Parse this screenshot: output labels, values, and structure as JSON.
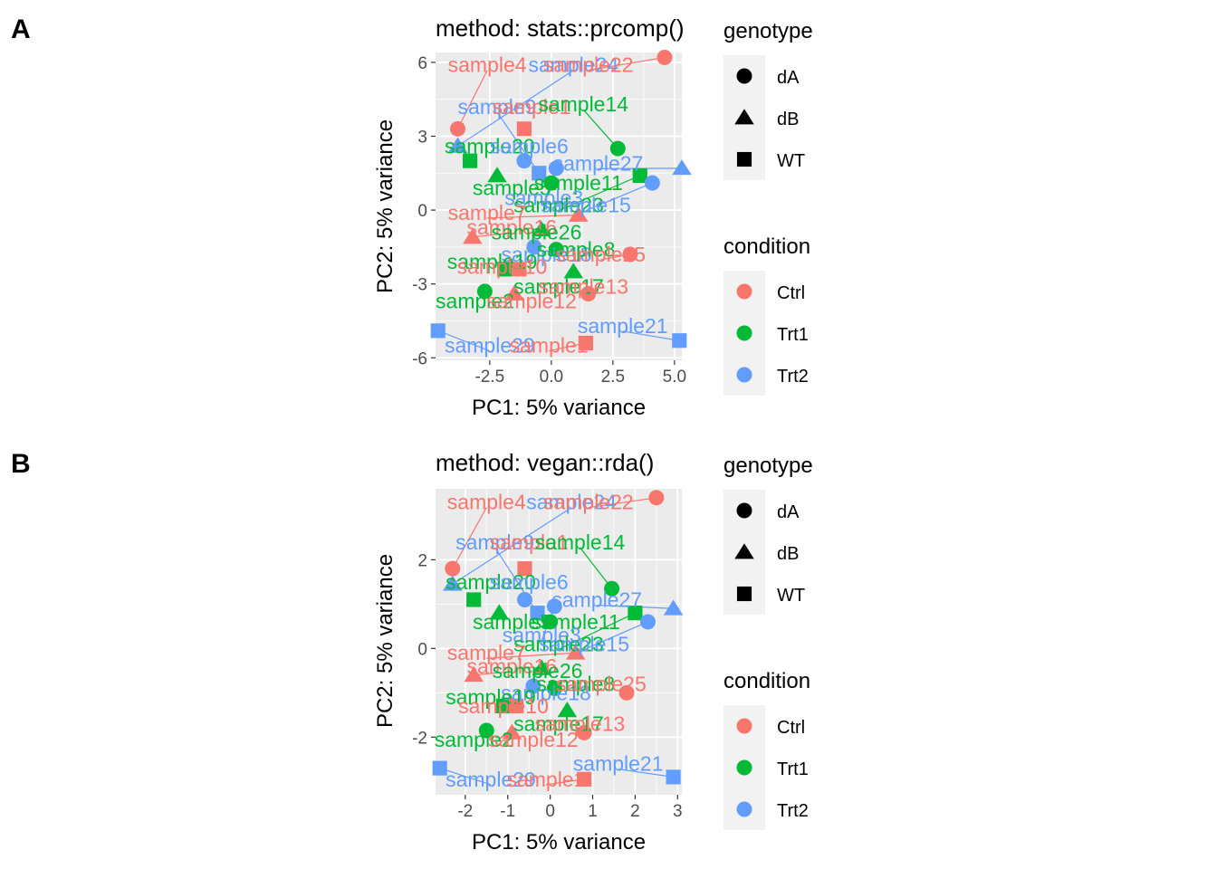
{
  "colors": {
    "panel_bg": "#EBEBEB",
    "grid": "#FFFFFF",
    "legend_key_bg": "#F2F2F2",
    "axis_text": "#4D4D4D",
    "Ctrl": "#F8766D",
    "Trt1": "#00BA38",
    "Trt2": "#619CFF"
  },
  "legend": {
    "genotype_title": "genotype",
    "genotype_items": [
      {
        "label": "dA",
        "shape": "circle"
      },
      {
        "label": "dB",
        "shape": "triangle"
      },
      {
        "label": "WT",
        "shape": "square"
      }
    ],
    "condition_title": "condition",
    "condition_items": [
      {
        "label": "Ctrl",
        "color": "#F8766D"
      },
      {
        "label": "Trt1",
        "color": "#00BA38"
      },
      {
        "label": "Trt2",
        "color": "#619CFF"
      }
    ]
  },
  "chart_data": [
    {
      "panel_tag": "A",
      "type": "scatter",
      "title": "method: stats::prcomp()",
      "xlabel": "PC1: 5% variance",
      "ylabel": "PC2: 5% variance",
      "xlim": [
        -4.7,
        5.3
      ],
      "ylim": [
        -6.1,
        6.4
      ],
      "xticks": [
        -2.5,
        0.0,
        2.5,
        5.0
      ],
      "xtick_labels": [
        "-2.5",
        "0.0",
        "2.5",
        "5.0"
      ],
      "yticks": [
        -6,
        -3,
        0,
        3,
        6
      ],
      "ytick_labels": [
        "-6",
        "-3",
        "0",
        "3",
        "6"
      ],
      "grid": true,
      "legend_position": "right",
      "points": [
        {
          "label": "sample4",
          "condition": "Ctrl",
          "genotype": "dA",
          "x": -3.8,
          "y": 3.3,
          "lx": -2.6,
          "ly": 5.9
        },
        {
          "label": "sample24",
          "condition": "Trt2",
          "genotype": "dB",
          "x": -3.8,
          "y": 2.6,
          "lx": 0.9,
          "ly": 5.9
        },
        {
          "label": "sample22",
          "condition": "Ctrl",
          "genotype": "dA",
          "x": 4.6,
          "y": 6.2,
          "lx": 1.5,
          "ly": 5.9
        },
        {
          "label": "sample9",
          "condition": "Trt2",
          "genotype": "WT",
          "x": -0.5,
          "y": 1.5,
          "lx": -2.2,
          "ly": 4.2
        },
        {
          "label": "sample1",
          "condition": "Ctrl",
          "genotype": "WT",
          "x": -1.1,
          "y": 3.3,
          "lx": -0.8,
          "ly": 4.2
        },
        {
          "label": "sample14",
          "condition": "Trt1",
          "genotype": "dA",
          "x": 2.7,
          "y": 2.5,
          "lx": 1.3,
          "ly": 4.3
        },
        {
          "label": "sample20",
          "condition": "Trt1",
          "genotype": "WT",
          "x": -3.3,
          "y": 2.0,
          "lx": -2.5,
          "ly": 2.6
        },
        {
          "label": "sample6",
          "condition": "Trt2",
          "genotype": "dA",
          "x": -1.1,
          "y": 2.0,
          "lx": -0.9,
          "ly": 2.6
        },
        {
          "label": "sample27",
          "condition": "Trt2",
          "genotype": "dB",
          "x": 5.3,
          "y": 1.7,
          "lx": 1.9,
          "ly": 1.9
        },
        {
          "label": "sample5",
          "condition": "Trt1",
          "genotype": "dB",
          "x": -2.2,
          "y": 1.4,
          "lx": -1.6,
          "ly": 0.9
        },
        {
          "label": "sample11",
          "condition": "Trt1",
          "genotype": "dA",
          "x": 0.0,
          "y": 1.1,
          "lx": 1.1,
          "ly": 1.1
        },
        {
          "label": "sample3",
          "condition": "Trt2",
          "genotype": "dA",
          "x": 0.2,
          "y": 1.7,
          "lx": -0.3,
          "ly": 0.5
        },
        {
          "label": "sample23",
          "condition": "Trt1",
          "genotype": "WT",
          "x": 3.6,
          "y": 1.4,
          "lx": 0.3,
          "ly": 0.2
        },
        {
          "label": "sample15",
          "condition": "Trt2",
          "genotype": "dA",
          "x": 4.1,
          "y": 1.1,
          "lx": 1.4,
          "ly": 0.2
        },
        {
          "label": "sample7",
          "condition": "Ctrl",
          "genotype": "dB",
          "x": 1.1,
          "y": -0.2,
          "lx": -2.6,
          "ly": -0.1
        },
        {
          "label": "sample16",
          "condition": "Ctrl",
          "genotype": "dB",
          "x": -3.2,
          "y": -1.1,
          "lx": -1.6,
          "ly": -0.7
        },
        {
          "label": "sample26",
          "condition": "Trt1",
          "genotype": "dB",
          "x": -0.4,
          "y": -0.8,
          "lx": -0.6,
          "ly": -0.9
        },
        {
          "label": "sample18",
          "condition": "Trt2",
          "genotype": "dA",
          "x": -0.7,
          "y": -1.5,
          "lx": -0.2,
          "ly": -1.8
        },
        {
          "label": "sample8",
          "condition": "Trt1",
          "genotype": "dA",
          "x": 0.2,
          "y": -1.6,
          "lx": 1.0,
          "ly": -1.6
        },
        {
          "label": "sample25",
          "condition": "Ctrl",
          "genotype": "dA",
          "x": 3.2,
          "y": -1.8,
          "lx": 2.0,
          "ly": -1.8
        },
        {
          "label": "sample19",
          "condition": "Trt1",
          "genotype": "WT",
          "x": -1.9,
          "y": -2.4,
          "lx": -2.4,
          "ly": -2.1
        },
        {
          "label": "sample10",
          "condition": "Ctrl",
          "genotype": "WT",
          "x": -1.3,
          "y": -2.4,
          "lx": -2.0,
          "ly": -2.3
        },
        {
          "label": "sample17",
          "condition": "Trt1",
          "genotype": "dB",
          "x": 0.9,
          "y": -2.5,
          "lx": 0.3,
          "ly": -3.1
        },
        {
          "label": "sample13",
          "condition": "Ctrl",
          "genotype": "dA",
          "x": 1.5,
          "y": -3.4,
          "lx": 1.3,
          "ly": -3.1
        },
        {
          "label": "sample2",
          "condition": "Trt1",
          "genotype": "dA",
          "x": -2.7,
          "y": -3.3,
          "lx": -3.1,
          "ly": -3.7
        },
        {
          "label": "sample12",
          "condition": "Ctrl",
          "genotype": "dB",
          "x": -1.5,
          "y": -3.4,
          "lx": -0.8,
          "ly": -3.7
        },
        {
          "label": "sample21",
          "condition": "Trt2",
          "genotype": "WT",
          "x": 5.2,
          "y": -5.3,
          "lx": 2.9,
          "ly": -4.7
        },
        {
          "label": "sample29",
          "condition": "Trt2",
          "genotype": "WT",
          "x": -4.6,
          "y": -4.9,
          "lx": -2.5,
          "ly": -5.5
        },
        {
          "label": "sample1b",
          "text": "sample1",
          "condition": "Ctrl",
          "genotype": "WT",
          "x": 1.4,
          "y": -5.4,
          "lx": -0.1,
          "ly": -5.5
        }
      ]
    },
    {
      "panel_tag": "B",
      "type": "scatter",
      "title": "method: vegan::rda()",
      "xlabel": "PC1: 5% variance",
      "ylabel": "PC2: 5% variance",
      "xlim": [
        -2.7,
        3.1
      ],
      "ylim": [
        -3.3,
        3.6
      ],
      "xticks": [
        -2,
        -1,
        0,
        1,
        2,
        3
      ],
      "xtick_labels": [
        "-2",
        "-1",
        "0",
        "1",
        "2",
        "3"
      ],
      "yticks": [
        -2,
        0,
        2
      ],
      "ytick_labels": [
        "-2",
        "0",
        "2"
      ],
      "grid": true,
      "legend_position": "right",
      "points": [
        {
          "label": "sample4",
          "condition": "Ctrl",
          "genotype": "dA",
          "x": -2.3,
          "y": 1.8,
          "lx": -1.5,
          "ly": 3.3
        },
        {
          "label": "sample24",
          "condition": "Trt2",
          "genotype": "dB",
          "x": -2.3,
          "y": 1.45,
          "lx": 0.5,
          "ly": 3.3
        },
        {
          "label": "sample22",
          "condition": "Ctrl",
          "genotype": "dA",
          "x": 2.5,
          "y": 3.4,
          "lx": 0.9,
          "ly": 3.3
        },
        {
          "label": "sample9",
          "condition": "Trt2",
          "genotype": "WT",
          "x": -0.3,
          "y": 0.8,
          "lx": -1.3,
          "ly": 2.4
        },
        {
          "label": "sample1",
          "condition": "Ctrl",
          "genotype": "WT",
          "x": -0.6,
          "y": 1.8,
          "lx": -0.5,
          "ly": 2.4
        },
        {
          "label": "sample14",
          "condition": "Trt1",
          "genotype": "dA",
          "x": 1.45,
          "y": 1.35,
          "lx": 0.7,
          "ly": 2.4
        },
        {
          "label": "sample20",
          "condition": "Trt1",
          "genotype": "WT",
          "x": -1.8,
          "y": 1.1,
          "lx": -1.4,
          "ly": 1.5
        },
        {
          "label": "sample6",
          "condition": "Trt2",
          "genotype": "dA",
          "x": -0.6,
          "y": 1.1,
          "lx": -0.5,
          "ly": 1.5
        },
        {
          "label": "sample27",
          "condition": "Trt2",
          "genotype": "dB",
          "x": 2.9,
          "y": 0.9,
          "lx": 1.1,
          "ly": 1.1
        },
        {
          "label": "sample5",
          "condition": "Trt1",
          "genotype": "dB",
          "x": -1.2,
          "y": 0.8,
          "lx": -0.9,
          "ly": 0.6
        },
        {
          "label": "sample11",
          "condition": "Trt1",
          "genotype": "dA",
          "x": 0.0,
          "y": 0.6,
          "lx": 0.6,
          "ly": 0.6
        },
        {
          "label": "sample3",
          "condition": "Trt2",
          "genotype": "dA",
          "x": 0.1,
          "y": 0.95,
          "lx": -0.2,
          "ly": 0.3
        },
        {
          "label": "sample23",
          "condition": "Trt1",
          "genotype": "WT",
          "x": 2.0,
          "y": 0.8,
          "lx": 0.2,
          "ly": 0.1
        },
        {
          "label": "sample15",
          "condition": "Trt2",
          "genotype": "dA",
          "x": 2.3,
          "y": 0.6,
          "lx": 0.8,
          "ly": 0.1
        },
        {
          "label": "sample7",
          "condition": "Ctrl",
          "genotype": "dB",
          "x": 0.6,
          "y": -0.1,
          "lx": -1.5,
          "ly": -0.1
        },
        {
          "label": "sample16",
          "condition": "Ctrl",
          "genotype": "dB",
          "x": -1.8,
          "y": -0.6,
          "lx": -0.9,
          "ly": -0.4
        },
        {
          "label": "sample26",
          "condition": "Trt1",
          "genotype": "dB",
          "x": -0.2,
          "y": -0.45,
          "lx": -0.3,
          "ly": -0.5
        },
        {
          "label": "sample18",
          "condition": "Trt2",
          "genotype": "dA",
          "x": -0.4,
          "y": -0.85,
          "lx": -0.1,
          "ly": -1.0
        },
        {
          "label": "sample8",
          "condition": "Trt1",
          "genotype": "dA",
          "x": 0.1,
          "y": -0.9,
          "lx": 0.6,
          "ly": -0.8
        },
        {
          "label": "sample25",
          "condition": "Ctrl",
          "genotype": "dA",
          "x": 1.8,
          "y": -1.0,
          "lx": 1.2,
          "ly": -0.8
        },
        {
          "label": "sample19",
          "condition": "Trt1",
          "genotype": "WT",
          "x": -1.1,
          "y": -1.3,
          "lx": -1.4,
          "ly": -1.1
        },
        {
          "label": "sample10",
          "condition": "Ctrl",
          "genotype": "WT",
          "x": -0.8,
          "y": -1.3,
          "lx": -1.1,
          "ly": -1.3
        },
        {
          "label": "sample17",
          "condition": "Trt1",
          "genotype": "dB",
          "x": 0.4,
          "y": -1.4,
          "lx": 0.2,
          "ly": -1.7
        },
        {
          "label": "sample13",
          "condition": "Ctrl",
          "genotype": "dA",
          "x": 0.8,
          "y": -1.9,
          "lx": 0.7,
          "ly": -1.7
        },
        {
          "label": "sample2",
          "condition": "Trt1",
          "genotype": "dA",
          "x": -1.5,
          "y": -1.85,
          "lx": -1.8,
          "ly": -2.05
        },
        {
          "label": "sample12",
          "condition": "Ctrl",
          "genotype": "dB",
          "x": -0.9,
          "y": -1.9,
          "lx": -0.4,
          "ly": -2.05
        },
        {
          "label": "sample21",
          "condition": "Trt2",
          "genotype": "WT",
          "x": 2.9,
          "y": -2.9,
          "lx": 1.6,
          "ly": -2.6
        },
        {
          "label": "sample29",
          "condition": "Trt2",
          "genotype": "WT",
          "x": -2.6,
          "y": -2.7,
          "lx": -1.4,
          "ly": -2.95
        },
        {
          "label": "sample1b",
          "text": "sample1",
          "condition": "Ctrl",
          "genotype": "WT",
          "x": 0.8,
          "y": -2.95,
          "lx": -0.1,
          "ly": -2.95
        }
      ]
    }
  ]
}
